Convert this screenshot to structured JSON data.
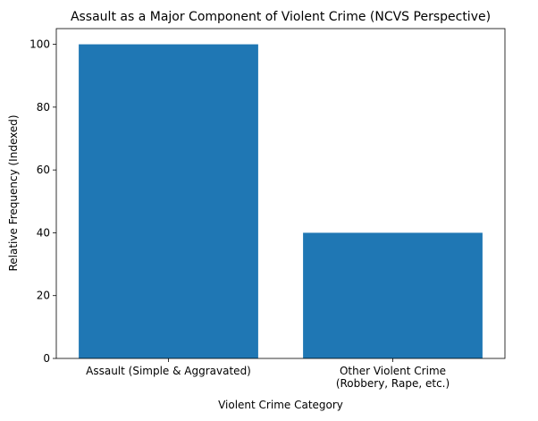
{
  "chart_data": {
    "type": "bar",
    "title": "Assault as a Major Component of Violent Crime (NCVS Perspective)",
    "x_label": "Violent Crime Category",
    "y_label": "Relative Frequency (Indexed)",
    "categories": [
      "Assault (Simple & Aggravated)",
      "Other Violent Crime\n(Robbery, Rape, etc.)"
    ],
    "values": [
      100,
      40
    ],
    "color": "#1f77b4",
    "ylim": [
      0,
      105
    ],
    "yticks": [
      0,
      20,
      40,
      60,
      80,
      100
    ],
    "grid": false
  }
}
